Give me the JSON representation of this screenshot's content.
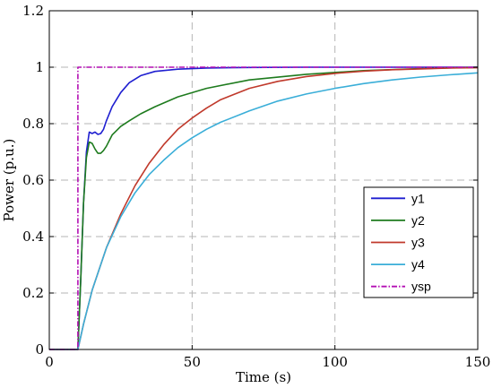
{
  "chart_data": {
    "type": "line",
    "title": "",
    "xlabel": "Time (s)",
    "ylabel": "Power (p.u.)",
    "xlim": [
      0,
      150
    ],
    "ylim": [
      0,
      1.2
    ],
    "xticks": [
      0,
      50,
      100,
      150
    ],
    "yticks": [
      0,
      0.2,
      0.4,
      0.6,
      0.8,
      1,
      1.2
    ],
    "xtick_labels": [
      "0",
      "50",
      "100",
      "150"
    ],
    "ytick_labels": [
      "0",
      "0.2",
      "0.4",
      "0.6",
      "0.8",
      "1",
      "1.2"
    ],
    "grid": true,
    "legend_position": "lower-right",
    "series": [
      {
        "name": "y1",
        "color": "#1f1fd0",
        "style": "solid",
        "x": [
          0,
          10,
          11,
          12,
          13,
          14,
          15,
          16,
          17,
          18,
          19,
          20,
          22,
          25,
          28,
          32,
          37,
          45,
          55,
          70,
          90,
          120,
          150
        ],
        "y": [
          0,
          0,
          0.25,
          0.52,
          0.7,
          0.77,
          0.765,
          0.77,
          0.762,
          0.765,
          0.78,
          0.81,
          0.86,
          0.91,
          0.945,
          0.97,
          0.985,
          0.993,
          0.997,
          0.999,
          1.0,
          1.0,
          1.0
        ]
      },
      {
        "name": "y2",
        "color": "#1e7b1e",
        "style": "solid",
        "x": [
          0,
          10,
          11,
          12,
          13,
          14,
          15,
          16,
          17,
          18,
          19,
          20,
          22,
          25,
          28,
          32,
          37,
          45,
          55,
          70,
          90,
          110,
          130,
          150
        ],
        "y": [
          0,
          0,
          0.25,
          0.52,
          0.68,
          0.735,
          0.73,
          0.71,
          0.695,
          0.695,
          0.705,
          0.72,
          0.76,
          0.79,
          0.81,
          0.835,
          0.86,
          0.895,
          0.925,
          0.955,
          0.975,
          0.988,
          0.995,
          1.0
        ]
      },
      {
        "name": "y3",
        "color": "#c0392b",
        "style": "solid",
        "x": [
          0,
          10,
          12,
          15,
          20,
          25,
          30,
          35,
          40,
          45,
          50,
          55,
          60,
          70,
          80,
          90,
          100,
          110,
          120,
          130,
          140,
          150
        ],
        "y": [
          0,
          0,
          0.09,
          0.21,
          0.36,
          0.48,
          0.58,
          0.66,
          0.725,
          0.78,
          0.82,
          0.855,
          0.885,
          0.925,
          0.95,
          0.967,
          0.978,
          0.986,
          0.991,
          0.994,
          0.997,
          0.998
        ]
      },
      {
        "name": "y4",
        "color": "#3aaed8",
        "style": "solid",
        "x": [
          0,
          10,
          12,
          15,
          20,
          25,
          30,
          35,
          40,
          45,
          50,
          55,
          60,
          70,
          80,
          90,
          100,
          110,
          120,
          130,
          140,
          150
        ],
        "y": [
          0,
          0,
          0.09,
          0.21,
          0.36,
          0.47,
          0.555,
          0.62,
          0.67,
          0.715,
          0.75,
          0.78,
          0.805,
          0.845,
          0.88,
          0.905,
          0.925,
          0.942,
          0.955,
          0.965,
          0.973,
          0.98
        ]
      },
      {
        "name": "ysp",
        "color": "#b30fb3",
        "style": "dashdot",
        "x": [
          0,
          10,
          10,
          150
        ],
        "y": [
          0,
          0,
          1,
          1
        ]
      }
    ]
  }
}
